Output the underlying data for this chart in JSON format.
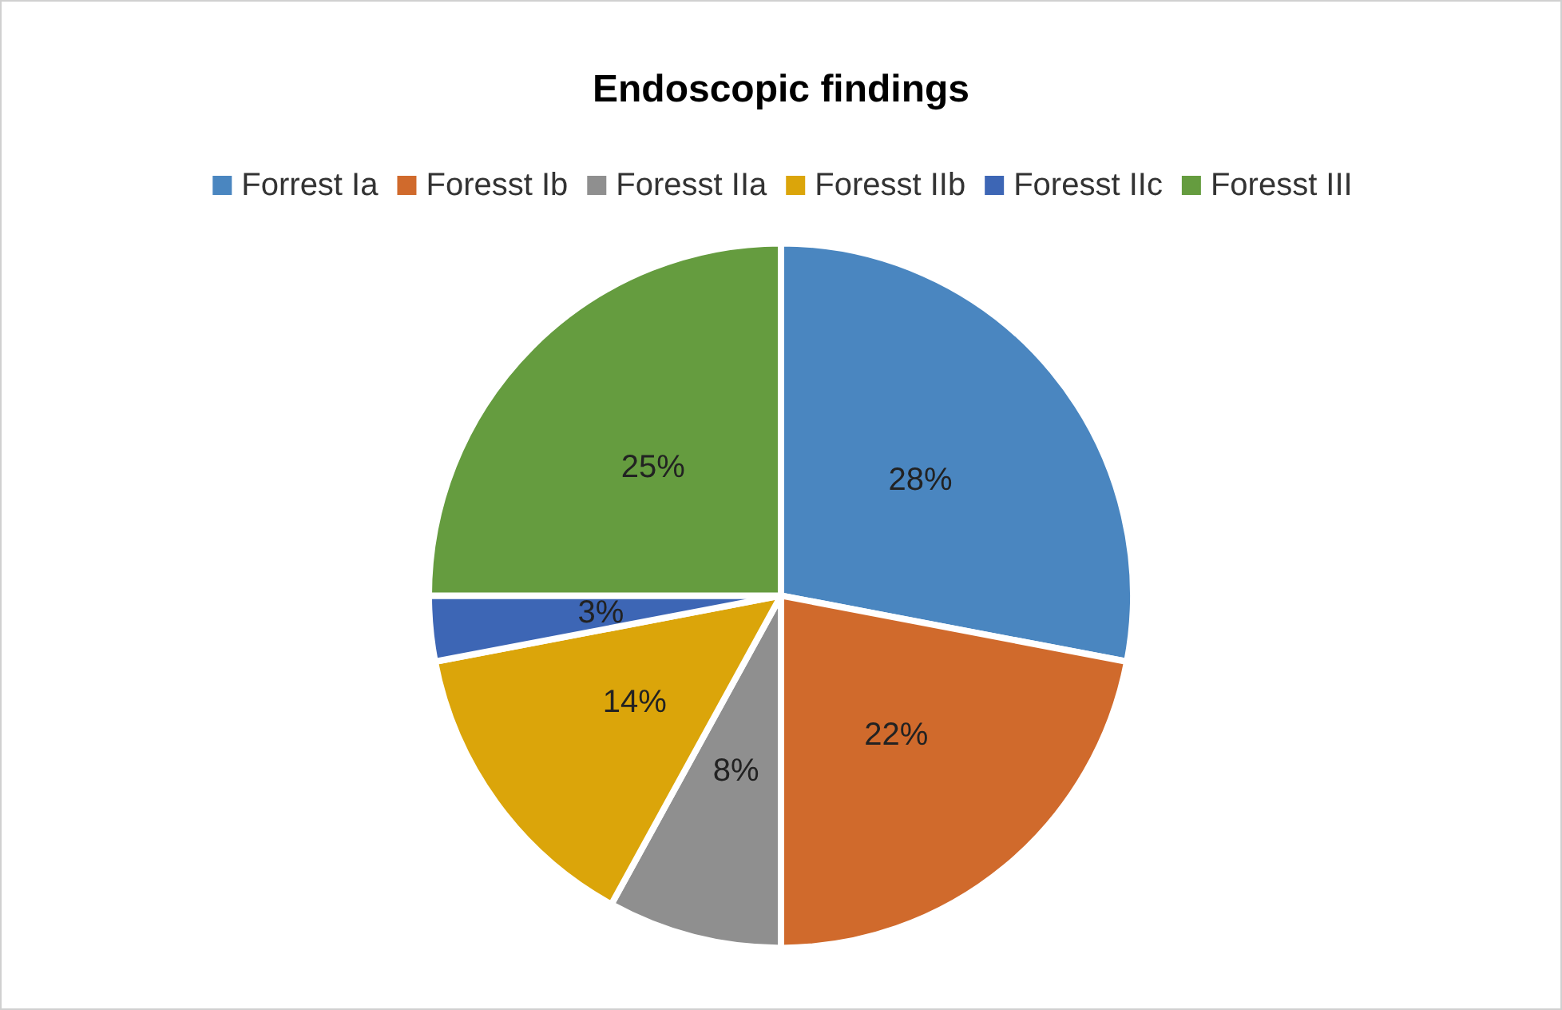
{
  "chart_data": {
    "type": "pie",
    "title": "Endoscopic findings",
    "categories": [
      "Forrest Ia",
      "Foresst Ib",
      "Foresst IIa",
      "Foresst IIb",
      "Foresst IIc",
      "Foresst III"
    ],
    "values": [
      28,
      22,
      8,
      14,
      3,
      25
    ],
    "value_labels": [
      "28%",
      "22%",
      "8%",
      "14%",
      "3%",
      "25%"
    ],
    "colors": [
      "#4a86c0",
      "#d06a2c",
      "#8f8f8f",
      "#dba50a",
      "#3d66b5",
      "#659c3f"
    ],
    "legend": "top"
  }
}
